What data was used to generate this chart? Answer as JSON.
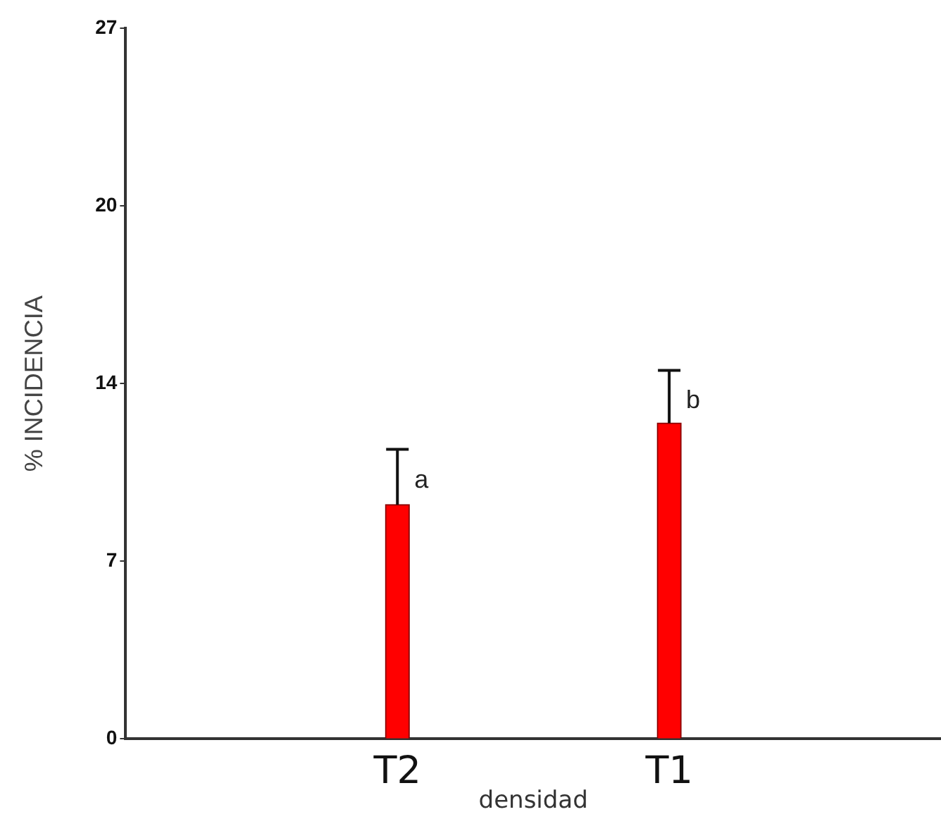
{
  "chart_data": {
    "type": "bar",
    "xlabel": "densidad",
    "ylabel": "% INCIDENCIA",
    "categories": [
      "T2",
      "T1"
    ],
    "values": [
      8.9,
      12.0
    ],
    "errors": [
      [
        8.9,
        11.0
      ],
      [
        12.0,
        14.0
      ]
    ],
    "color": "#ff0000",
    "ylim": [
      0,
      27
    ],
    "yticks": [
      0,
      {
        "value": 6.75,
        "label": "7"
      },
      {
        "value": 13.5,
        "label": "14"
      },
      {
        "value": 20.25,
        "label": "20"
      },
      27
    ],
    "annotations": [
      "a",
      "b"
    ],
    "grid": false,
    "legend": false
  }
}
